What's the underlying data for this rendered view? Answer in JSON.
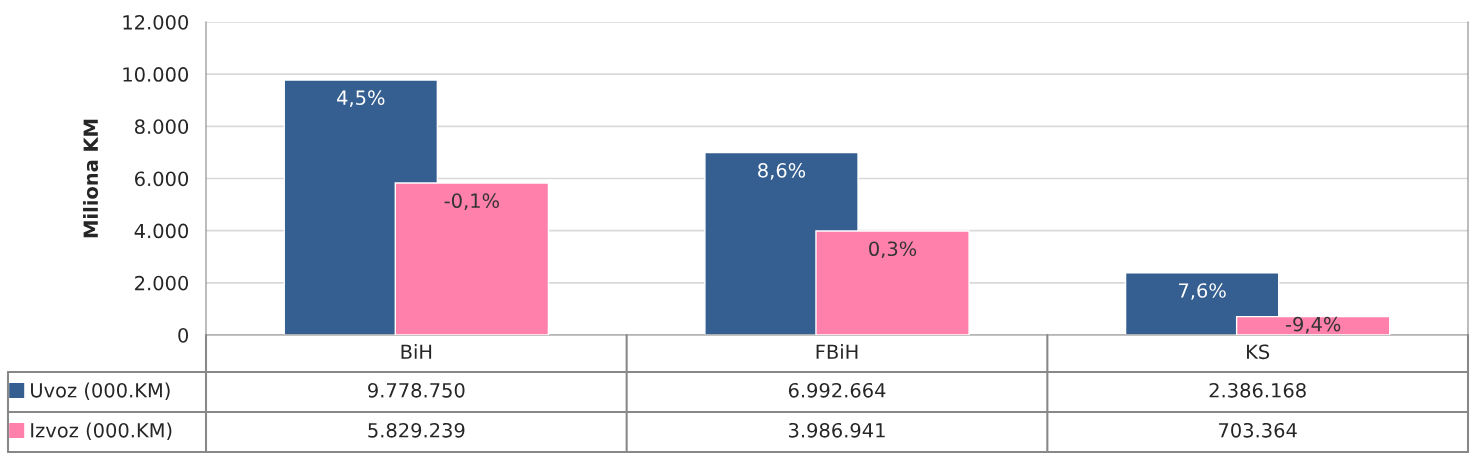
{
  "chart_data": {
    "type": "bar",
    "ylabel": "Miliona KM",
    "categories": [
      "BiH",
      "FBiH",
      "KS"
    ],
    "series": [
      {
        "name": "Uvoz (000.KM)",
        "color": "#355f91",
        "values": [
          9778.75,
          6992.664,
          2386.168
        ]
      },
      {
        "name": "Izvoz (000.KM)",
        "color": "#ff80aa",
        "values": [
          5829.239,
          3986.941,
          703.364
        ]
      }
    ],
    "ylim": [
      0,
      12000
    ],
    "yticks": [
      {
        "value": 0,
        "label": "0"
      },
      {
        "value": 2000,
        "label": "2.000"
      },
      {
        "value": 4000,
        "label": "4.000"
      },
      {
        "value": 6000,
        "label": "6.000"
      },
      {
        "value": 8000,
        "label": "8.000"
      },
      {
        "value": 10000,
        "label": "10.000"
      },
      {
        "value": 12000,
        "label": "12.000"
      }
    ],
    "grid": "y",
    "legend": "bottom",
    "annotations": [
      {
        "text": "4,5%",
        "x": "BiH",
        "y": 9778.75
      },
      {
        "text": "-0,1%",
        "x": "BiH",
        "y": 5829.239
      },
      {
        "text": "8,6%",
        "x": "FBiH",
        "y": 6992.664
      },
      {
        "text": "0,3%",
        "x": "FBiH",
        "y": 3986.941
      },
      {
        "text": "7,6%",
        "x": "KS",
        "y": 2386.168
      },
      {
        "text": "-9,4%",
        "x": "KS",
        "y": 703.364
      },
      "9.778.750",
      "6.992.664",
      "2.386.168",
      "5.829.239",
      "3.986.941",
      "703.364"
    ]
  }
}
